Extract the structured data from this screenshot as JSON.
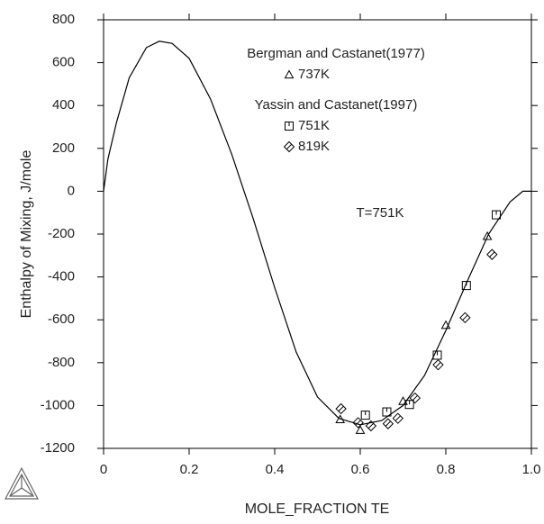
{
  "chart_data": {
    "type": "scatter",
    "xlabel": "MOLE_FRACTION TE",
    "ylabel": "Enthalpy of Mixing, J/mole",
    "xlim": [
      0,
      1
    ],
    "ylim": [
      -1200,
      800
    ],
    "xticks": [
      0,
      0.2,
      0.4,
      0.6,
      0.8,
      {
        "value": 1,
        "label": "1.0"
      }
    ],
    "yticks": [
      -1200,
      -1000,
      -800,
      -600,
      -400,
      -200,
      0,
      200,
      400,
      600,
      800
    ],
    "legend_titles": [
      "Bergman and Castanet(1977)",
      "Yassin and Castanet(1997)"
    ],
    "annotations": [
      "T=751K"
    ],
    "curve": {
      "color": "#000000",
      "x": [
        0,
        0.01,
        0.03,
        0.06,
        0.1,
        0.13,
        0.16,
        0.2,
        0.25,
        0.3,
        0.35,
        0.4,
        0.45,
        0.5,
        0.55,
        0.6,
        0.65,
        0.7,
        0.75,
        0.8,
        0.85,
        0.9,
        0.95,
        0.98,
        1
      ],
      "values": [
        0,
        150,
        320,
        530,
        670,
        700,
        690,
        620,
        430,
        170,
        -130,
        -450,
        -750,
        -960,
        -1060,
        -1090,
        -1070,
        -1000,
        -860,
        -650,
        -420,
        -200,
        -50,
        0,
        0
      ]
    },
    "series": [
      {
        "name": "737K",
        "marker": "triangle",
        "color": "#000000",
        "x": [
          0.553,
          0.6,
          0.7,
          0.8,
          0.897
        ],
        "values": [
          -1065,
          -1115,
          -980,
          -625,
          -210
        ]
      },
      {
        "name": "751K",
        "marker": "square",
        "color": "#000000",
        "x": [
          0.612,
          0.662,
          0.715,
          0.78,
          0.848,
          0.918
        ],
        "values": [
          -1045,
          -1030,
          -995,
          -765,
          -440,
          -110
        ]
      },
      {
        "name": "819K",
        "marker": "diamond",
        "color": "#000000",
        "x": [
          0.555,
          0.595,
          0.625,
          0.665,
          0.688,
          0.728,
          0.782,
          0.845,
          0.908
        ],
        "values": [
          -1015,
          -1080,
          -1095,
          -1085,
          -1060,
          -965,
          -810,
          -590,
          -295
        ]
      }
    ]
  }
}
